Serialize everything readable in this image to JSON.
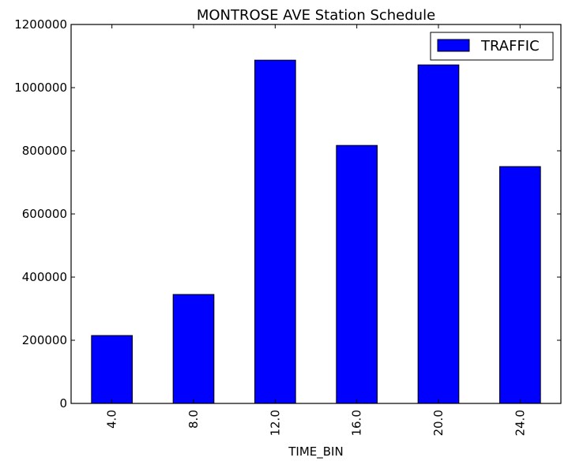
{
  "chart_data": {
    "type": "bar",
    "title": "MONTROSE AVE Station Schedule",
    "xlabel": "TIME_BIN",
    "ylabel": "",
    "categories": [
      "4.0",
      "8.0",
      "12.0",
      "16.0",
      "20.0",
      "24.0"
    ],
    "series": [
      {
        "name": "TRAFFIC",
        "values": [
          215000,
          345000,
          1087000,
          817000,
          1072000,
          750000
        ],
        "color": "#0000ff"
      }
    ],
    "ylim": [
      0,
      1200000
    ],
    "yticks": [
      "0",
      "200000",
      "400000",
      "600000",
      "800000",
      "1000000",
      "1200000"
    ],
    "ytick_values": [
      0,
      200000,
      400000,
      600000,
      800000,
      1000000,
      1200000
    ],
    "grid": false,
    "legend_position": "top-right"
  }
}
